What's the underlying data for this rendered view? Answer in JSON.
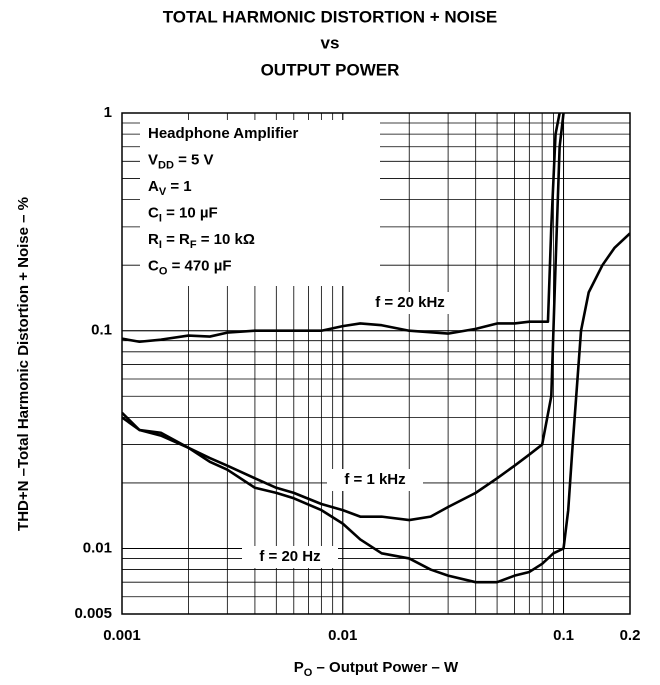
{
  "chart_data": {
    "type": "line",
    "title": [
      "TOTAL HARMONIC DISTORTION + NOISE",
      "vs",
      "OUTPUT POWER"
    ],
    "x_label": [
      "P",
      "O",
      " – Output Power – W"
    ],
    "y_label": "THD+N –Total Harmonic Distortion + Noise – %",
    "log_x": true,
    "log_y": true,
    "grid": true,
    "xlim": [
      0.001,
      0.2
    ],
    "xticks": [
      0.001,
      0.01,
      0.1,
      0.2
    ],
    "ylim": [
      0.005,
      1
    ],
    "yticks": [
      0.005,
      0.01,
      0.1,
      1
    ],
    "annotations": [
      [
        "Headphone Amplifier"
      ],
      [
        "V",
        "DD",
        " = 5 V"
      ],
      [
        "A",
        "V",
        " = 1"
      ],
      [
        "C",
        "I",
        " = 10 µF"
      ],
      [
        "R",
        "I",
        " = R",
        "F",
        " = 10 kΩ"
      ],
      [
        "C",
        "O",
        " = 470 µF"
      ]
    ],
    "series": [
      {
        "name": "f = 20 kHz",
        "color": "#000000",
        "x": [
          0.001,
          0.0012,
          0.0015,
          0.002,
          0.0025,
          0.003,
          0.004,
          0.005,
          0.006,
          0.008,
          0.01,
          0.012,
          0.015,
          0.02,
          0.03,
          0.04,
          0.05,
          0.06,
          0.07,
          0.08,
          0.085,
          0.088,
          0.092,
          0.096
        ],
        "values": [
          0.092,
          0.089,
          0.091,
          0.095,
          0.094,
          0.098,
          0.1,
          0.1,
          0.1,
          0.1,
          0.105,
          0.108,
          0.106,
          0.1,
          0.097,
          0.102,
          0.108,
          0.108,
          0.11,
          0.11,
          0.11,
          0.3,
          0.8,
          1
        ]
      },
      {
        "name": "f = 1 kHz",
        "color": "#000000",
        "x": [
          0.001,
          0.0012,
          0.0015,
          0.002,
          0.0025,
          0.003,
          0.004,
          0.005,
          0.006,
          0.008,
          0.01,
          0.012,
          0.015,
          0.02,
          0.025,
          0.03,
          0.04,
          0.05,
          0.06,
          0.07,
          0.08,
          0.088,
          0.092,
          0.096,
          0.1
        ],
        "values": [
          0.04,
          0.035,
          0.034,
          0.029,
          0.026,
          0.024,
          0.021,
          0.019,
          0.018,
          0.016,
          0.015,
          0.014,
          0.014,
          0.0135,
          0.014,
          0.0155,
          0.018,
          0.021,
          0.024,
          0.027,
          0.03,
          0.05,
          0.2,
          0.7,
          1
        ]
      },
      {
        "name": "f = 20 Hz",
        "color": "#000000",
        "x": [
          0.001,
          0.0012,
          0.0015,
          0.002,
          0.0025,
          0.003,
          0.004,
          0.005,
          0.006,
          0.008,
          0.01,
          0.012,
          0.015,
          0.02,
          0.025,
          0.03,
          0.04,
          0.05,
          0.06,
          0.07,
          0.08,
          0.09,
          0.1,
          0.105,
          0.11,
          0.12,
          0.13,
          0.15,
          0.17,
          0.2
        ],
        "values": [
          0.042,
          0.035,
          0.033,
          0.029,
          0.025,
          0.023,
          0.019,
          0.018,
          0.017,
          0.015,
          0.013,
          0.011,
          0.0095,
          0.009,
          0.008,
          0.0075,
          0.007,
          0.007,
          0.0075,
          0.0078,
          0.0085,
          0.0095,
          0.01,
          0.015,
          0.03,
          0.1,
          0.15,
          0.2,
          0.24,
          0.28
        ]
      }
    ]
  }
}
